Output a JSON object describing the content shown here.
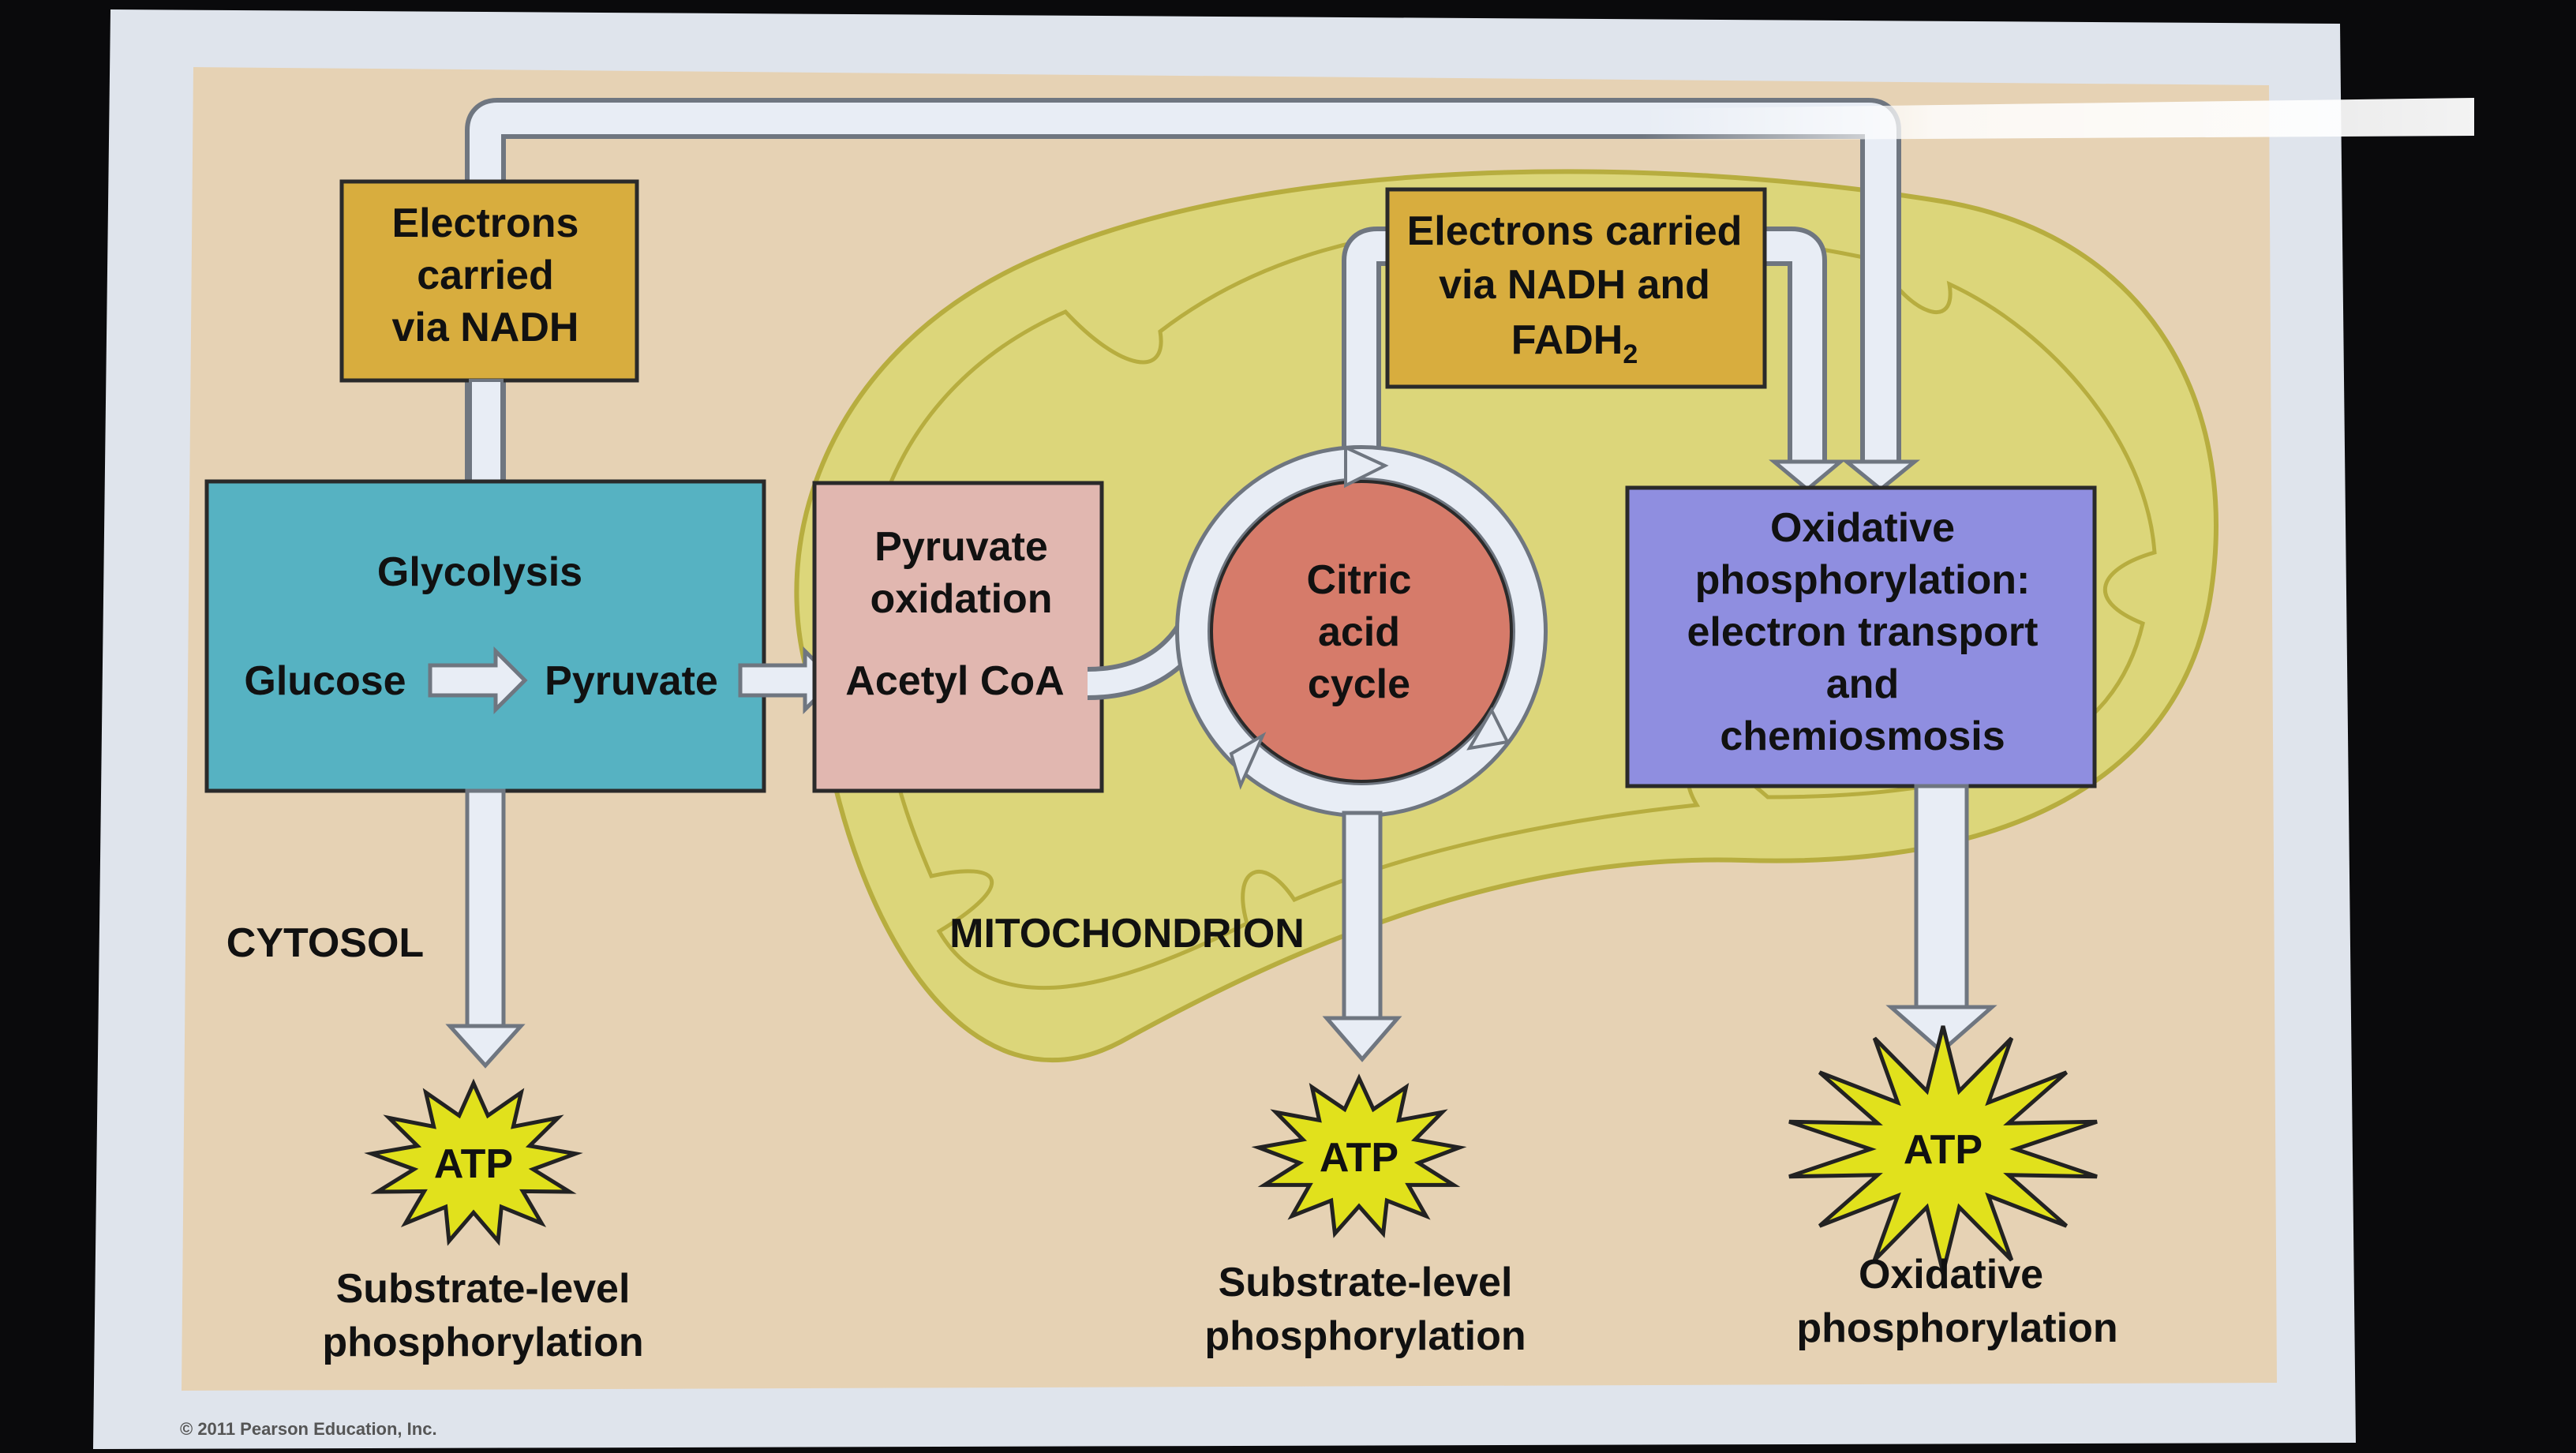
{
  "colors": {
    "background": "#0a0a0c",
    "frame": "#dfe4ec",
    "slide": "#e6d2b4",
    "mitochondrion": "#dcd67a",
    "mito_outline": "#b7ad3f",
    "electron_box": "#d8ad3e",
    "glycolysis": "#56b2c2",
    "pyruvate_ox": "#e1b7b0",
    "citric_circle": "#d67b6a",
    "oxphos": "#8f8ee0",
    "atp_star": "#e1e11c",
    "arrow_fill": "#e8edf5",
    "arrow_stroke": "#6f7680"
  },
  "boxes": {
    "electrons_nadh": [
      "Electrons",
      "carried",
      "via NADH"
    ],
    "electrons_nadh_fadh": [
      "Electrons carried",
      "via NADH and",
      "FADH",
      "2"
    ],
    "glycolysis": {
      "title": "Glycolysis",
      "glucose": "Glucose",
      "pyruvate": "Pyruvate"
    },
    "pyruvate_oxidation": {
      "line1": "Pyruvate",
      "line2": "oxidation",
      "acetyl": "Acetyl CoA"
    },
    "citric_acid_cycle": [
      "Citric",
      "acid",
      "cycle"
    ],
    "oxidative_phosphorylation": [
      "Oxidative",
      "phosphorylation:",
      "electron transport",
      "and",
      "chemiosmosis"
    ]
  },
  "regions": {
    "cytosol": "CYTOSOL",
    "mitochondrion": "MITOCHONDRION"
  },
  "outputs": [
    {
      "atp": "ATP",
      "caption": [
        "Substrate-level",
        "phosphorylation"
      ]
    },
    {
      "atp": "ATP",
      "caption": [
        "Substrate-level",
        "phosphorylation"
      ]
    },
    {
      "atp": "ATP",
      "caption": [
        "Oxidative",
        "phosphorylation"
      ]
    }
  ],
  "copyright": "© 2011 Pearson Education, Inc."
}
